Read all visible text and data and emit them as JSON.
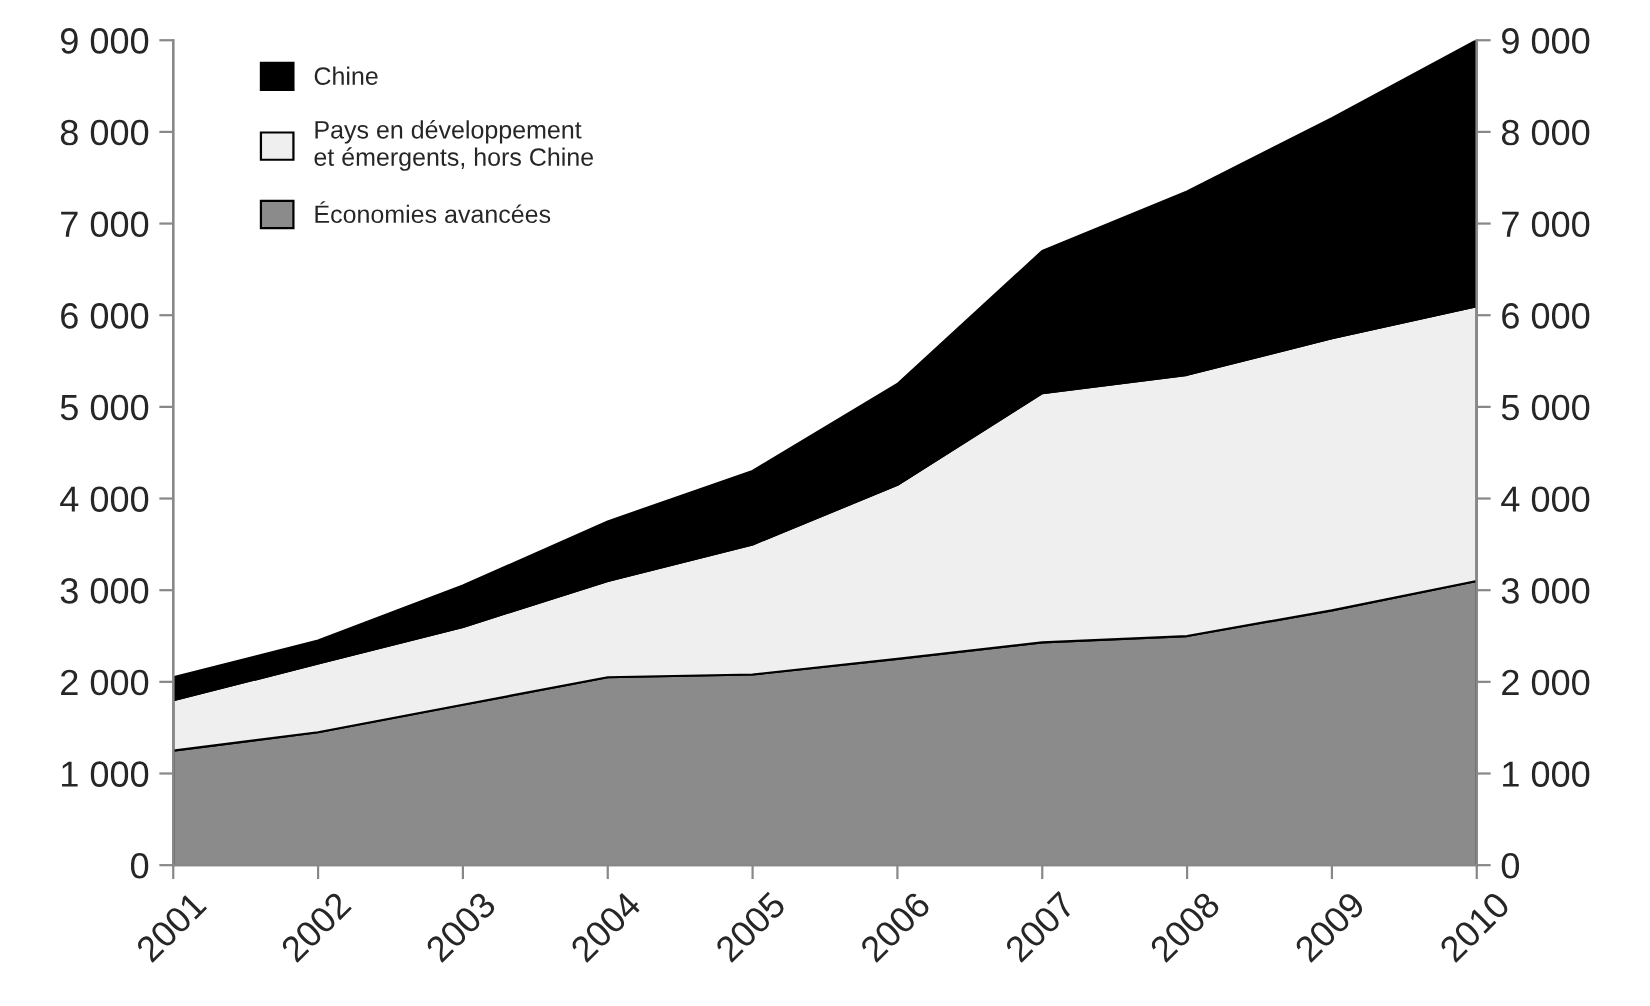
{
  "chart_data": {
    "type": "area",
    "stacked": true,
    "legend": "top left",
    "grid": false,
    "categories": [
      "2001",
      "2002",
      "2003",
      "2004",
      "2005",
      "2006",
      "2007",
      "2008",
      "2009",
      "2010"
    ],
    "series": [
      {
        "name": "Économies avancées",
        "color": "#8a8b8a",
        "values": [
          1250,
          1450,
          1750,
          2050,
          2080,
          2250,
          2430,
          2500,
          2780,
          3100
        ]
      },
      {
        "name": "Pays en développement\net émergents, hors Chine",
        "color": "#efefef",
        "values": [
          550,
          750,
          850,
          1050,
          1420,
          1900,
          2720,
          2850,
          2970,
          3000
        ]
      },
      {
        "name": "Chine",
        "color": "#000000",
        "values": [
          250,
          250,
          450,
          650,
          800,
          1100,
          1550,
          2000,
          2400,
          2900
        ]
      }
    ],
    "ylim": [
      0,
      9000
    ],
    "yticks": [
      0,
      {
        "value": 1000,
        "label": "1 000"
      },
      {
        "value": 2000,
        "label": "2 000"
      },
      {
        "value": 3000,
        "label": "3 000"
      },
      {
        "value": 4000,
        "label": "4 000"
      },
      {
        "value": 5000,
        "label": "5 000"
      },
      {
        "value": 6000,
        "label": "6 000"
      },
      {
        "value": 7000,
        "label": "7 000"
      },
      {
        "value": 8000,
        "label": "8 000"
      },
      {
        "value": 9000,
        "label": "9 000"
      }
    ],
    "y2lim": [
      0,
      9000
    ],
    "y2ticks": [
      0,
      {
        "value": 1000,
        "label": "1 000"
      },
      {
        "value": 2000,
        "label": "2 000"
      },
      {
        "value": 3000,
        "label": "3 000"
      },
      {
        "value": 4000,
        "label": "4 000"
      },
      {
        "value": 5000,
        "label": "5 000"
      },
      {
        "value": 6000,
        "label": "6 000"
      },
      {
        "value": 7000,
        "label": "7 000"
      },
      {
        "value": 8000,
        "label": "8 000"
      },
      {
        "value": 9000,
        "label": "9 000"
      }
    ]
  }
}
